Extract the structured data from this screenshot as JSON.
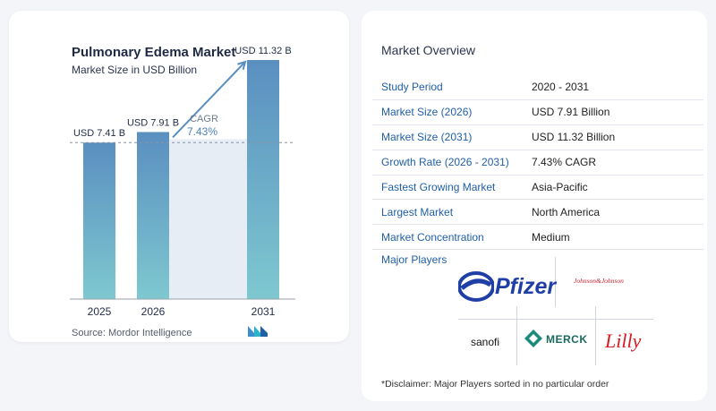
{
  "chart": {
    "title": "Pulmonary Edema Market",
    "subtitle": "Market Size in USD Billion",
    "source": "Source:  Mordor Intelligence",
    "cagr_label": "CAGR",
    "cagr_value": "7.43%"
  },
  "chart_data": {
    "type": "bar",
    "categories": [
      "2025",
      "2026",
      "2031"
    ],
    "values": [
      7.41,
      7.91,
      11.32
    ],
    "data_labels": [
      "USD 7.41 B",
      "USD 7.91 B",
      "USD 11.32 B"
    ],
    "title": "Pulmonary Edema Market",
    "subtitle": "Market Size in USD Billion",
    "ylim": [
      0,
      12
    ],
    "grid": false,
    "colors": {
      "bar_top": "#5a8fc0",
      "bar_bottom": "#7ec8d0",
      "arrow": "#5a8fc0",
      "band": "#dde6ef"
    }
  },
  "overview": {
    "title": "Market Overview",
    "rows": [
      {
        "key": "Study Period",
        "value": "2020 - 2031"
      },
      {
        "key": "Market Size (2026)",
        "value": "USD 7.91 Billion"
      },
      {
        "key": "Market Size (2031)",
        "value": "USD 11.32 Billion"
      },
      {
        "key": "Growth Rate (2026 - 2031)",
        "value": "7.43% CAGR"
      },
      {
        "key": "Fastest Growing Market",
        "value": "Asia-Pacific"
      },
      {
        "key": "Largest Market",
        "value": "North America"
      },
      {
        "key": "Market Concentration",
        "value": "Medium"
      }
    ],
    "players_title": "Major Players",
    "players": [
      "Pfizer",
      "Johnson&Johnson",
      "sanofi",
      "MERCK",
      "Lilly"
    ],
    "disclaimer": "*Disclaimer: Major Players sorted in no particular order"
  }
}
